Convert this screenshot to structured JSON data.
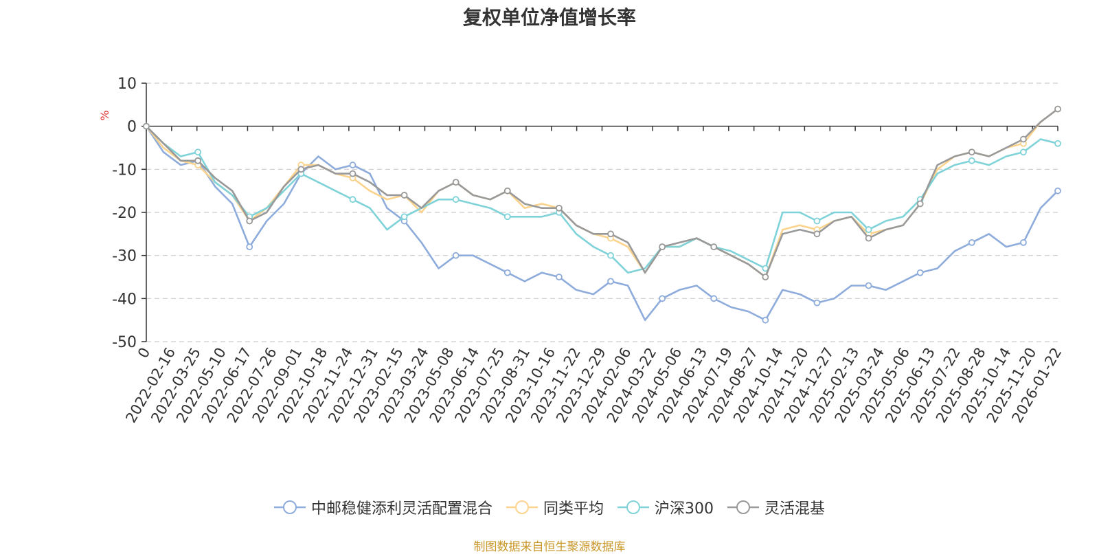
{
  "chart_data": {
    "type": "line",
    "title": "复权单位净值增长率",
    "ylabel": "%",
    "ylim": [
      -50,
      10
    ],
    "yticks": [
      10,
      0,
      -10,
      -20,
      -30,
      -40,
      -50
    ],
    "x_ticks": [
      "0",
      "2022-02-16",
      "2022-03-25",
      "2022-05-10",
      "2022-06-17",
      "2022-07-26",
      "2022-09-01",
      "2022-10-18",
      "2022-11-24",
      "2022-12-31",
      "2023-02-15",
      "2023-03-24",
      "2023-05-08",
      "2023-06-14",
      "2023-07-25",
      "2023-08-31",
      "2023-10-16",
      "2023-11-22",
      "2023-12-29",
      "2024-02-06",
      "2024-03-22",
      "2024-05-06",
      "2024-06-13",
      "2024-07-19",
      "2024-08-27",
      "2024-10-14",
      "2024-11-20",
      "2024-12-27",
      "2025-02-13",
      "2025-03-24",
      "2025-05-06",
      "2025-06-13",
      "2025-07-22",
      "2025-08-28",
      "2025-10-14",
      "2025-11-20",
      "2026-01-22"
    ],
    "series": [
      {
        "name": "中邮稳健添利灵活配置混合",
        "color": "#8eacdb",
        "values": [
          0,
          -6,
          -9,
          -8,
          -14,
          -18,
          -28,
          -22,
          -18,
          -11,
          -7,
          -10,
          -9,
          -11,
          -19,
          -22,
          -27,
          -33,
          -30,
          -30,
          -32,
          -34,
          -36,
          -34,
          -35,
          -38,
          -39,
          -36,
          -37,
          -45,
          -40,
          -38,
          -37,
          -40,
          -42,
          -43,
          -45,
          -38,
          -39,
          -41,
          -40,
          -37,
          -37,
          -38,
          -36,
          -34,
          -33,
          -29,
          -27,
          -25,
          -28,
          -27,
          -19,
          -15
        ]
      },
      {
        "name": "同类平均",
        "color": "#fcd38c",
        "values": [
          0,
          -5,
          -8,
          -9,
          -13,
          -16,
          -22,
          -19,
          -14,
          -9,
          -9,
          -11,
          -12,
          -15,
          -17,
          -16,
          -20,
          -15,
          -13,
          -16,
          -17,
          -15,
          -19,
          -18,
          -19,
          -23,
          -25,
          -26,
          -28,
          -34,
          -28,
          -28,
          -26,
          -28,
          -30,
          -32,
          -35,
          -24,
          -23,
          -24,
          -22,
          -21,
          -25,
          -24,
          -23,
          -18,
          -10,
          -7,
          -6,
          -7,
          -5,
          -4,
          1,
          4
        ]
      },
      {
        "name": "沪深300",
        "color": "#7fd3d8",
        "values": [
          0,
          -4,
          -7,
          -6,
          -13,
          -16,
          -21,
          -19,
          -15,
          -11,
          -13,
          -15,
          -17,
          -19,
          -24,
          -21,
          -19,
          -17,
          -17,
          -18,
          -19,
          -21,
          -21,
          -21,
          -20,
          -25,
          -28,
          -30,
          -34,
          -33,
          -28,
          -28,
          -26,
          -28,
          -29,
          -31,
          -33,
          -20,
          -20,
          -22,
          -20,
          -20,
          -24,
          -22,
          -21,
          -17,
          -11,
          -9,
          -8,
          -9,
          -7,
          -6,
          -3,
          -4
        ]
      },
      {
        "name": "灵活混基",
        "color": "#999999",
        "values": [
          0,
          -4,
          -8,
          -8,
          -12,
          -15,
          -22,
          -20,
          -14,
          -10,
          -9,
          -11,
          -11,
          -13,
          -16,
          -16,
          -19,
          -15,
          -13,
          -16,
          -17,
          -15,
          -18,
          -19,
          -19,
          -23,
          -25,
          -25,
          -27,
          -34,
          -28,
          -27,
          -26,
          -28,
          -30,
          -32,
          -35,
          -25,
          -24,
          -25,
          -22,
          -21,
          -26,
          -24,
          -23,
          -18,
          -9,
          -7,
          -6,
          -7,
          -5,
          -3,
          1,
          4
        ]
      }
    ]
  },
  "source_note": "制图数据来自恒生聚源数据库"
}
